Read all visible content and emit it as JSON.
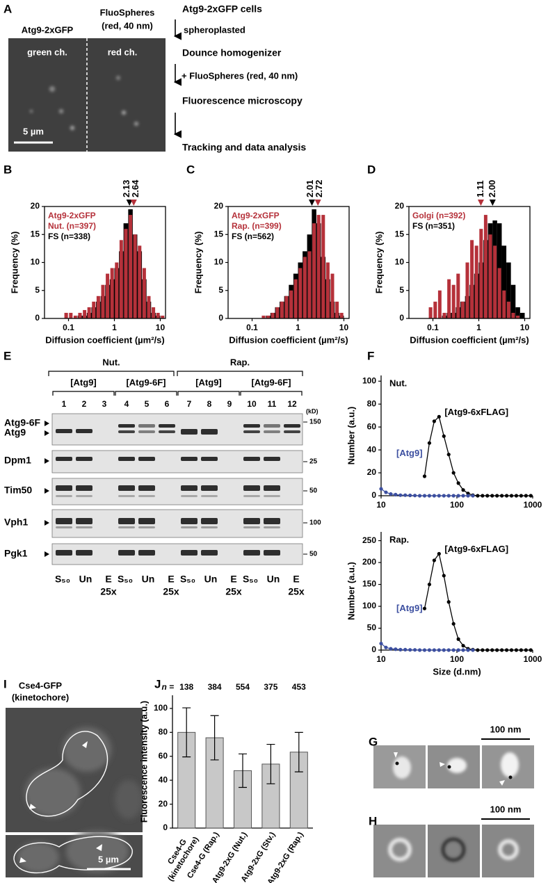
{
  "panel_letters": [
    "A",
    "B",
    "C",
    "D",
    "E",
    "F",
    "G",
    "H",
    "I",
    "J"
  ],
  "panel_a": {
    "channel_headers": [
      "Atg9-2xGFP",
      "FluoSpheres",
      "(red, 40 nm)"
    ],
    "channel_labels": [
      "green ch.",
      "red ch."
    ],
    "scale_bar": "5 µm",
    "steps": [
      "Atg9-2xGFP cells",
      "Dounce homogenizer",
      "Fluorescence microscopy",
      "Tracking and data analysis"
    ],
    "arrow_labels": [
      "spheroplasted",
      "+ FluoSpheres (red, 40 nm)"
    ]
  },
  "chart_data": [
    {
      "type": "histogram",
      "xscale": "log",
      "bins": [
        0.063,
        0.079,
        0.1,
        0.126,
        0.158,
        0.2,
        0.251,
        0.316,
        0.398,
        0.501,
        0.631,
        0.794,
        1,
        1.26,
        1.58,
        2,
        2.51,
        3.16,
        3.98,
        5.01,
        6.31,
        7.94,
        10,
        12.6
      ],
      "series": [
        {
          "name": "Nut. (n=397)",
          "color": "#b5313a",
          "values": [
            0,
            1,
            1,
            0.5,
            1,
            1.5,
            2,
            3,
            4,
            6,
            8,
            9,
            10,
            14,
            16,
            18.5,
            15,
            13,
            9,
            4,
            2,
            1,
            0.5
          ]
        },
        {
          "name": "FS (n=338)",
          "color": "#000000",
          "values": [
            0,
            0,
            0,
            0,
            0.5,
            0.5,
            1,
            2,
            3,
            4,
            6,
            7,
            9,
            12,
            17,
            19.5,
            15,
            12,
            7,
            3,
            1,
            0.5,
            0
          ]
        }
      ],
      "legend_heading": "Atg9-2xGFP",
      "markers": [
        {
          "value": 2.13,
          "color": "#000000"
        },
        {
          "value": 2.64,
          "color": "#b5313a"
        }
      ],
      "xlabel": "Diffusion coefficient (µm²/s)",
      "ylabel": "Frequency (%)",
      "xlim": [
        0.03,
        13
      ],
      "ylim": [
        0,
        20
      ],
      "xticks": [
        0.1,
        1,
        10
      ],
      "yticks": [
        0,
        5,
        10,
        15,
        20
      ]
    },
    {
      "type": "histogram",
      "xscale": "log",
      "bins": [
        0.063,
        0.079,
        0.1,
        0.126,
        0.158,
        0.2,
        0.251,
        0.316,
        0.398,
        0.501,
        0.631,
        0.794,
        1,
        1.26,
        1.58,
        2,
        2.51,
        3.16,
        3.98,
        5.01,
        6.31,
        7.94,
        10,
        12.6
      ],
      "series": [
        {
          "name": "Rap. (n=399)",
          "color": "#b5313a",
          "values": [
            0,
            0,
            0,
            0,
            0.5,
            0.5,
            1,
            2,
            3,
            4,
            5,
            7,
            9,
            11,
            12,
            17,
            18.5,
            18.5,
            10,
            8,
            3,
            1,
            0
          ]
        },
        {
          "name": "FS (n=562)",
          "color": "#000000",
          "values": [
            0,
            0,
            0,
            0,
            0,
            0.5,
            1,
            2,
            3,
            4,
            6,
            8,
            10,
            12,
            15,
            19.5,
            17,
            11,
            7,
            3,
            1,
            0.5,
            0
          ]
        }
      ],
      "legend_heading": "Atg9-2xGFP",
      "markers": [
        {
          "value": 2.01,
          "color": "#000000"
        },
        {
          "value": 2.72,
          "color": "#b5313a"
        }
      ],
      "xlabel": "Diffusion coefficient (µm²/s)",
      "ylabel": "Frequency (%)",
      "xlim": [
        0.03,
        13
      ],
      "ylim": [
        0,
        20
      ],
      "xticks": [
        0.1,
        1,
        10
      ],
      "yticks": [
        0,
        5,
        10,
        15,
        20
      ]
    },
    {
      "type": "histogram",
      "xscale": "log",
      "bins": [
        0.063,
        0.079,
        0.1,
        0.126,
        0.158,
        0.2,
        0.251,
        0.316,
        0.398,
        0.501,
        0.631,
        0.794,
        1,
        1.26,
        1.58,
        2,
        2.51,
        3.16,
        3.98,
        5.01,
        6.31,
        7.94,
        10,
        12.6
      ],
      "series": [
        {
          "name": "Golgi (n=392)",
          "color": "#b5313a",
          "values": [
            0,
            2,
            3,
            5,
            1,
            7,
            6,
            8,
            3,
            10,
            14,
            13,
            16,
            18.5,
            15,
            13,
            9,
            5,
            3,
            1,
            0.5,
            0,
            0
          ]
        },
        {
          "name": "FS (n=351)",
          "color": "#000000",
          "values": [
            0,
            0,
            0,
            0,
            0.5,
            1,
            1,
            2,
            3,
            4,
            6,
            8,
            10,
            14,
            17,
            17.5,
            17,
            13,
            10,
            6,
            2,
            1,
            0
          ]
        }
      ],
      "markers": [
        {
          "value": 1.11,
          "color": "#b5313a"
        },
        {
          "value": 2,
          "label": "2.00",
          "color": "#000000"
        }
      ],
      "xlabel": "Diffusion coefficient (µm²/s)",
      "ylabel": "Frequency (%)",
      "xlim": [
        0.03,
        13
      ],
      "ylim": [
        0,
        20
      ],
      "xticks": [
        0.1,
        1,
        10
      ],
      "yticks": [
        0,
        5,
        10,
        15,
        20
      ]
    },
    {
      "type": "line",
      "xscale": "log",
      "title": "Nut.",
      "x": [
        10,
        11.58,
        13.41,
        15.53,
        17.98,
        20.82,
        24.11,
        27.92,
        32.33,
        37.44,
        43.36,
        50.21,
        58.14,
        67.33,
        77.97,
        90.29,
        104.6,
        121.1,
        140.2,
        162.4,
        188,
        217.7,
        252.1,
        292,
        338.1,
        391.5,
        453.4,
        525.1,
        608,
        704.1,
        815.4,
        944.2
      ],
      "series": [
        {
          "name": "[Atg9-6xFLAG]",
          "color": "#000000",
          "values": [
            null,
            null,
            null,
            null,
            null,
            null,
            null,
            null,
            null,
            17,
            46,
            65,
            69,
            52,
            36,
            20,
            11,
            5,
            2,
            0.5,
            0,
            0,
            0,
            0,
            0,
            0,
            0,
            0,
            0,
            0,
            0,
            0
          ]
        },
        {
          "name": "[Atg9]",
          "color": "#3c4fa0",
          "values": [
            6,
            3,
            1.5,
            1,
            0.5,
            0.5,
            0.3,
            0.2,
            0,
            0,
            0,
            0,
            0,
            0,
            0,
            0,
            0,
            0,
            0,
            0,
            null,
            null,
            null,
            null,
            null,
            null,
            null,
            null,
            null,
            null,
            null,
            null
          ]
        }
      ],
      "ylabel": "Number (a.u.)",
      "xlim": [
        10,
        1000
      ],
      "ylim": [
        0,
        105
      ],
      "xticks": [
        10,
        100,
        1000
      ],
      "yticks": [
        0,
        20,
        40,
        60,
        80,
        100
      ]
    },
    {
      "type": "line",
      "xscale": "log",
      "title": "Rap.",
      "x": [
        10,
        11.58,
        13.41,
        15.53,
        17.98,
        20.82,
        24.11,
        27.92,
        32.33,
        37.44,
        43.36,
        50.21,
        58.14,
        67.33,
        77.97,
        90.29,
        104.6,
        121.1,
        140.2,
        162.4,
        188,
        217.7,
        252.1,
        292,
        338.1,
        391.5,
        453.4,
        525.1,
        608,
        704.1,
        815.4,
        944.2
      ],
      "series": [
        {
          "name": "[Atg9-6xFLAG]",
          "color": "#000000",
          "values": [
            null,
            null,
            null,
            null,
            null,
            null,
            null,
            null,
            null,
            95,
            150,
            205,
            220,
            170,
            110,
            60,
            25,
            10,
            3,
            1,
            0,
            0,
            0,
            0,
            0,
            0,
            0,
            0,
            0,
            0,
            0,
            0
          ]
        },
        {
          "name": "[Atg9]",
          "color": "#3c4fa0",
          "values": [
            15,
            6,
            3,
            2,
            1,
            1,
            0.5,
            0.5,
            0,
            0,
            0,
            0,
            0,
            0,
            0,
            0,
            0,
            0,
            0,
            0,
            null,
            null,
            null,
            null,
            null,
            null,
            null,
            null,
            null,
            null,
            null,
            null
          ]
        }
      ],
      "ylabel": "Number (a.u.)",
      "xlabel": "Size (d.nm)",
      "xlim": [
        10,
        1000
      ],
      "ylim": [
        0,
        270
      ],
      "xticks": [
        10,
        100,
        1000
      ],
      "yticks": [
        0,
        50,
        100,
        150,
        200,
        250
      ]
    },
    {
      "type": "bar",
      "categories": [
        "Cse4-G (kinetochore)",
        "Cse4-G (Rap.)",
        "Atg9-2xG (Nut.)",
        "Atg9-2xG (Stv.)",
        "Atg9-2xG (Rap.)"
      ],
      "values": [
        80,
        75.5,
        48,
        53.5,
        63.5
      ],
      "errors": [
        20.5,
        18.5,
        14,
        16.5,
        16.5
      ],
      "n_label": "n =",
      "n": [
        138,
        384,
        554,
        375,
        453
      ],
      "color": "#c8c8c8",
      "ylabel": "Fluorescence intensity (a.u.)",
      "ylim": [
        0,
        111
      ],
      "yticks": [
        0,
        20,
        40,
        60,
        80,
        100
      ]
    }
  ],
  "panel_e": {
    "conditions": [
      "Nut.",
      "Rap."
    ],
    "groups": [
      {
        "label": "[Atg9]",
        "lanes": [
          1,
          2,
          3
        ],
        "fractions": [
          "S₅₀",
          "Un",
          "E",
          "25x"
        ]
      },
      {
        "label": "[Atg9-6F]",
        "lanes": [
          4,
          5,
          6
        ],
        "fractions": [
          "S₅₀",
          "Un",
          "E",
          "25x"
        ]
      },
      {
        "label": "[Atg9]",
        "lanes": [
          7,
          8,
          9
        ],
        "fractions": [
          "S₅₀",
          "Un",
          "E",
          "25x"
        ]
      },
      {
        "label": "[Atg9-6F]",
        "lanes": [
          10,
          11,
          12
        ],
        "fractions": [
          "S₅₀",
          "Un",
          "E",
          "25x"
        ]
      }
    ],
    "kd_unit": "(kD)",
    "proteins": [
      "Atg9-6F",
      "Atg9",
      "Dpm1",
      "Tim50",
      "Vph1",
      "Pgk1"
    ],
    "size_markers": [
      150,
      25,
      50,
      100,
      50
    ]
  },
  "panel_g": {
    "scale_bar": "100 nm"
  },
  "panel_h": {
    "scale_bar": "100 nm"
  },
  "panel_i": {
    "title_lines": [
      "Cse4-GFP",
      "(kinetochore)"
    ],
    "scale_bar": "5 µm"
  }
}
